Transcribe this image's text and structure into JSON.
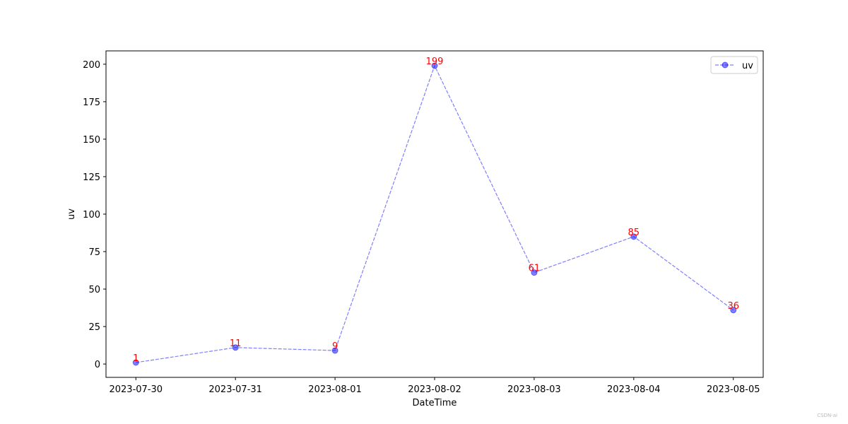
{
  "chart_data": {
    "type": "line",
    "xlabel": "DateTime",
    "ylabel": "uv",
    "categories": [
      "2023-07-30",
      "2023-07-31",
      "2023-08-01",
      "2023-08-02",
      "2023-08-03",
      "2023-08-04",
      "2023-08-05"
    ],
    "series": [
      {
        "name": "uv",
        "color": "#0000ff",
        "alpha": 0.5,
        "label_color": "#ff0000",
        "values": [
          1,
          11,
          9,
          199,
          61,
          85,
          36
        ]
      }
    ],
    "ylim": [
      -8.9,
      208.9
    ],
    "yticks": [
      0,
      25,
      50,
      75,
      100,
      125,
      150,
      175,
      200
    ],
    "legend": "upper right",
    "grid": false,
    "watermark": "CSDN-ai"
  }
}
